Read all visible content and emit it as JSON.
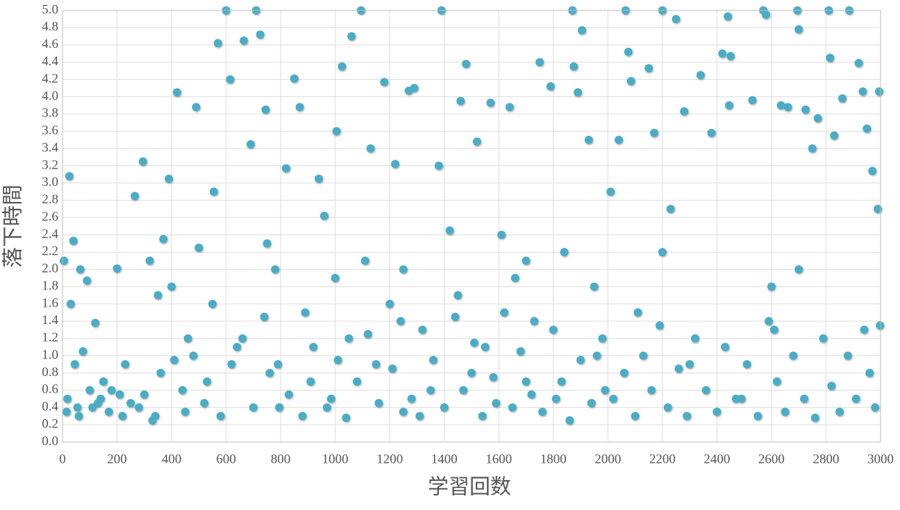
{
  "chart_data": {
    "type": "scatter",
    "x_label": "学習回数",
    "y_label": "落下時間",
    "color": "#4bacc6",
    "grid": true,
    "xlim": [
      0,
      3000
    ],
    "xticks": [
      0,
      200,
      400,
      600,
      800,
      1000,
      1200,
      1400,
      1600,
      1800,
      2000,
      2200,
      2400,
      2600,
      2800,
      3000
    ],
    "ylim": [
      0,
      5
    ],
    "yticks": [
      {
        "value": 0,
        "label": "0.0"
      },
      0.2,
      0.4,
      0.6,
      0.8,
      {
        "value": 1,
        "label": "1.0"
      },
      1.2,
      1.4,
      1.6,
      1.8,
      {
        "value": 2,
        "label": "2.0"
      },
      2.2,
      2.4,
      2.6,
      2.8,
      {
        "value": 3,
        "label": "3.0"
      },
      3.2,
      3.4,
      3.6,
      3.8,
      {
        "value": 4,
        "label": "4.0"
      },
      4.2,
      4.4,
      4.6,
      4.8,
      {
        "value": 5,
        "label": "5.0"
      }
    ],
    "x": [
      5,
      18,
      25,
      30,
      40,
      45,
      55,
      65,
      75,
      90,
      100,
      120,
      130,
      150,
      170,
      200,
      210,
      230,
      265,
      280,
      295,
      320,
      340,
      370,
      390,
      400,
      420,
      440,
      460,
      490,
      500,
      520,
      555,
      570,
      600,
      615,
      640,
      665,
      690,
      710,
      725,
      745,
      760,
      780,
      795,
      820,
      850,
      870,
      890,
      910,
      940,
      960,
      985,
      1005,
      1025,
      1050,
      1060,
      1095,
      1110,
      1130,
      1150,
      1180,
      1200,
      1220,
      1250,
      1270,
      1290,
      1320,
      1350,
      1380,
      1390,
      1420,
      1460,
      1480,
      1500,
      1520,
      1550,
      1570,
      1590,
      1610,
      1640,
      1660,
      1700,
      1730,
      1750,
      1790,
      1810,
      1840,
      1870,
      1875,
      1890,
      1905,
      1930,
      1960,
      1990,
      2010,
      2040,
      2065,
      2075,
      2085,
      2110,
      2150,
      2170,
      2200,
      2230,
      2250,
      2280,
      2300,
      2340,
      2380,
      2420,
      2440,
      2450,
      2445,
      2490,
      2530,
      2570,
      2580,
      2610,
      2635,
      2660,
      2695,
      2700,
      2725,
      2750,
      2770,
      2810,
      2815,
      2830,
      2860,
      2885,
      2920,
      2935,
      2950,
      2970,
      2995,
      2990,
      15,
      60,
      110,
      140,
      180,
      220,
      250,
      300,
      330,
      360,
      410,
      450,
      480,
      530,
      580,
      620,
      660,
      700,
      740,
      790,
      830,
      880,
      920,
      970,
      1010,
      1040,
      1080,
      1120,
      1160,
      1210,
      1240,
      1280,
      1310,
      1360,
      1400,
      1440,
      1470,
      1510,
      1540,
      1580,
      1620,
      1650,
      1680,
      1720,
      1760,
      1800,
      1830,
      1860,
      1900,
      1940,
      1980,
      2020,
      2060,
      2100,
      2130,
      2160,
      2190,
      2220,
      2260,
      2290,
      2320,
      2360,
      2400,
      2430,
      2470,
      2510,
      2550,
      2590,
      2620,
      2650,
      2680,
      2720,
      2760,
      2790,
      2820,
      2850,
      2880,
      2910,
      2940,
      2960,
      2980,
      2998,
      2600,
      350,
      550,
      750,
      1000,
      1250,
      1450,
      1700,
      1950,
      2200,
      2700
    ],
    "values": [
      2.1,
      0.5,
      3.08,
      1.6,
      2.33,
      0.9,
      0.4,
      2.0,
      1.05,
      1.87,
      0.6,
      1.38,
      0.45,
      0.7,
      0.35,
      2.01,
      0.55,
      0.9,
      2.85,
      0.4,
      3.25,
      2.1,
      0.3,
      2.35,
      3.05,
      1.8,
      4.05,
      0.6,
      1.2,
      3.88,
      2.25,
      0.45,
      2.9,
      4.62,
      5.0,
      4.2,
      1.1,
      4.65,
      3.45,
      5.0,
      4.72,
      3.85,
      0.8,
      2.0,
      0.4,
      3.17,
      4.21,
      3.88,
      1.5,
      0.7,
      3.05,
      2.62,
      0.5,
      3.6,
      4.35,
      1.2,
      4.7,
      5.0,
      2.1,
      3.4,
      0.9,
      4.17,
      1.6,
      3.22,
      0.35,
      4.07,
      4.1,
      1.3,
      0.6,
      3.2,
      5.0,
      2.45,
      3.95,
      4.38,
      0.8,
      3.48,
      1.1,
      3.93,
      0.45,
      2.4,
      3.88,
      1.9,
      0.7,
      1.4,
      4.4,
      4.12,
      0.5,
      2.2,
      5.0,
      4.35,
      4.05,
      4.77,
      3.5,
      1.0,
      0.6,
      2.9,
      3.5,
      5.0,
      4.52,
      4.18,
      1.5,
      4.33,
      3.58,
      5.0,
      2.7,
      4.9,
      3.83,
      0.9,
      4.25,
      3.58,
      4.5,
      4.93,
      4.47,
      3.9,
      0.5,
      3.96,
      5.0,
      4.95,
      1.3,
      3.9,
      3.88,
      5.0,
      4.78,
      3.85,
      3.4,
      3.75,
      5.0,
      4.45,
      3.55,
      3.98,
      5.0,
      4.39,
      4.06,
      3.63,
      3.14,
      4.06,
      2.7,
      0.35,
      0.3,
      0.4,
      0.5,
      0.6,
      0.3,
      0.45,
      0.55,
      0.25,
      0.8,
      0.95,
      0.35,
      1.0,
      0.7,
      0.3,
      0.9,
      1.2,
      0.4,
      1.45,
      0.9,
      0.55,
      0.3,
      1.1,
      0.4,
      0.95,
      0.28,
      0.7,
      1.25,
      0.45,
      0.85,
      1.4,
      0.5,
      0.3,
      0.95,
      0.4,
      1.45,
      0.6,
      1.15,
      0.3,
      0.75,
      1.5,
      0.4,
      1.05,
      0.55,
      0.35,
      1.3,
      0.7,
      0.25,
      0.95,
      0.45,
      1.2,
      0.5,
      0.8,
      0.3,
      1.0,
      0.6,
      1.35,
      0.4,
      0.85,
      0.3,
      1.2,
      0.6,
      0.35,
      1.1,
      0.5,
      0.9,
      0.3,
      1.4,
      0.7,
      0.35,
      1.0,
      0.5,
      0.28,
      1.2,
      0.65,
      0.35,
      1.0,
      0.5,
      1.3,
      0.8,
      0.4,
      1.35,
      1.8,
      1.7,
      1.6,
      2.3,
      1.9,
      2.0,
      1.7,
      2.1,
      1.8,
      2.2,
      2.0
    ]
  }
}
